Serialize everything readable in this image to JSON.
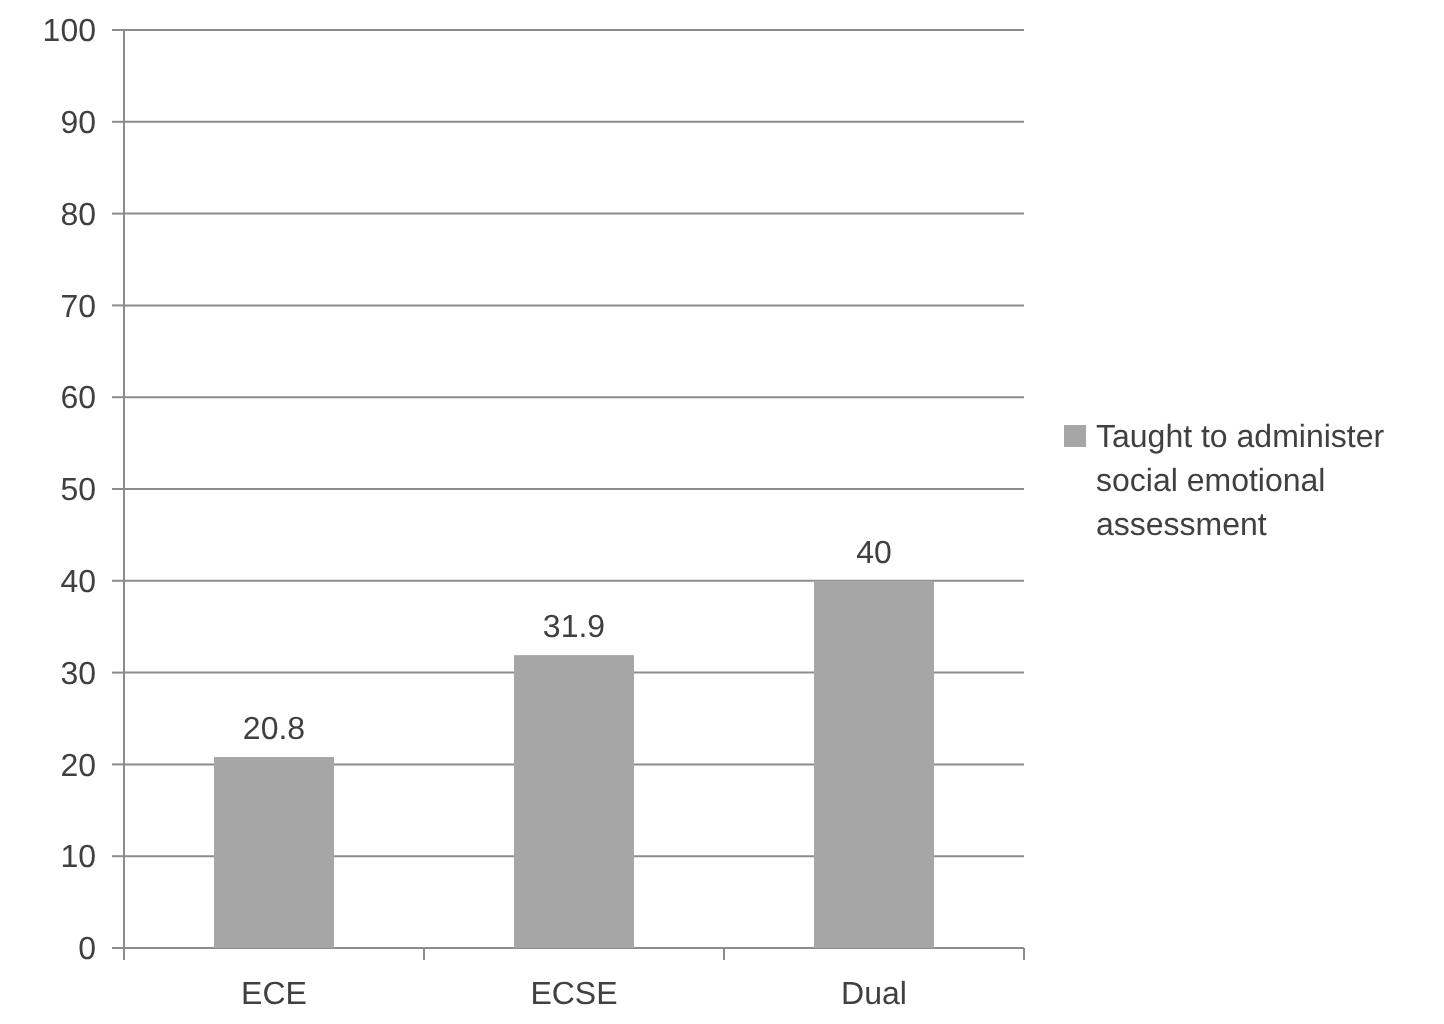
{
  "chart_data": {
    "type": "bar",
    "categories": [
      "ECE",
      "ECSE",
      "Dual"
    ],
    "series": [
      {
        "name": "Taught to administer social emotional assessment",
        "color": "#a6a6a6",
        "values": [
          20.8,
          31.9,
          40
        ]
      }
    ],
    "ylim": [
      0,
      100
    ],
    "yticks": [
      0,
      10,
      20,
      30,
      40,
      50,
      60,
      70,
      80,
      90,
      100
    ],
    "grid": "y",
    "legend": "right",
    "data_labels": true
  }
}
